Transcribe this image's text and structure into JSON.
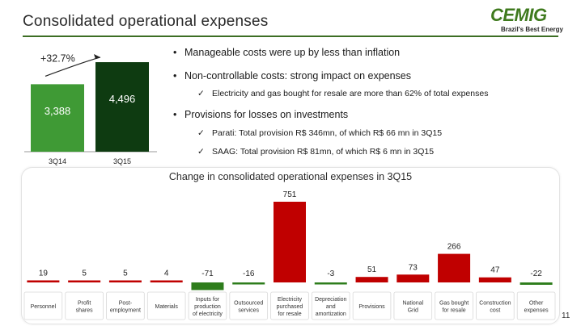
{
  "slide": {
    "title": "Consolidated operational expenses",
    "page_number": "11"
  },
  "logo": {
    "mark": "CEMIG",
    "tagline": "Brazil's Best Energy"
  },
  "bullets": [
    {
      "text": "Manageable costs were up by less than inflation",
      "subs": []
    },
    {
      "text": "Non-controllable costs: strong impact on expenses",
      "subs": [
        "Electricity and gas bought for resale are more than 62% of total expenses"
      ]
    },
    {
      "text": "Provisions for losses on investments",
      "subs": [
        "Parati: Total provision R$ 346mn, of which R$ 66 mn in 3Q15",
        "SAAG: Total provision R$ 81mn, of which R$ 6 mn in 3Q15"
      ]
    }
  ],
  "chart_data": [
    {
      "type": "bar",
      "categories": [
        "3Q14",
        "3Q15"
      ],
      "values": [
        3388,
        4496
      ],
      "data_labels": [
        "3,388",
        "4,496"
      ],
      "annotation": "+32.7%",
      "colors": [
        "#3f9a35",
        "#0e3b11"
      ],
      "ylim": [
        0,
        4700
      ]
    },
    {
      "type": "bar",
      "title": "Change in consolidated operational expenses in 3Q15",
      "categories": [
        "Personnel",
        "Profit shares",
        "Post-employment",
        "Materials",
        "Inputs for production of electricity",
        "Outsourced services",
        "Electricity purchased for resale",
        "Depreciation and amortization",
        "Provisions",
        "National Grid",
        "Gas bought for resale",
        "Construction cost",
        "Other expenses"
      ],
      "category_lines": [
        [
          "Personnel"
        ],
        [
          "Profit",
          "shares"
        ],
        [
          "Post-",
          "employment"
        ],
        [
          "Materials"
        ],
        [
          "Inputs for",
          "production",
          "of electricity"
        ],
        [
          "Outsourced",
          "services"
        ],
        [
          "Electricity",
          "purchased",
          "for resale"
        ],
        [
          "Depreciation",
          "and",
          "amortization"
        ],
        [
          "Provisions"
        ],
        [
          "National",
          "Grid"
        ],
        [
          "Gas bought",
          "for resale"
        ],
        [
          "Construction",
          "cost"
        ],
        [
          "Other",
          "expenses"
        ]
      ],
      "values": [
        19,
        5,
        5,
        4,
        -71,
        -16,
        751,
        -3,
        51,
        73,
        266,
        47,
        -22
      ],
      "data_labels": [
        "19",
        "5",
        "5",
        "4",
        "-71",
        "-16",
        "751",
        "-3",
        "51",
        "73",
        "266",
        "47",
        "-22"
      ],
      "positive_color": "#c00000",
      "negative_color": "#2e7d1c",
      "ylim": [
        -80,
        760
      ]
    }
  ]
}
